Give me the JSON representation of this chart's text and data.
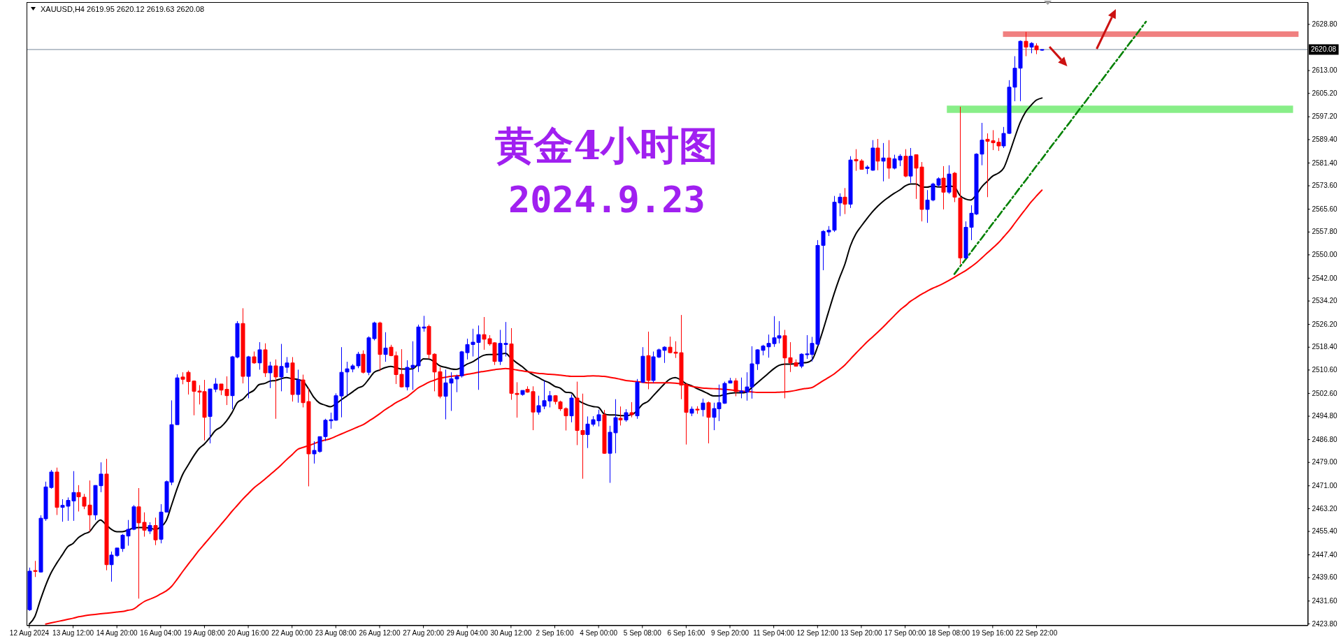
{
  "chart_data": {
    "type": "candlestick",
    "title": "黄金4小时图",
    "subtitle": "2024.9.23",
    "annotations": [
      "XAUUSD,H4 2619.95 2620.12 2619.63 2620.08"
    ],
    "categories": [
      "12 Aug 2024",
      null,
      null,
      null,
      null,
      null,
      null,
      null,
      "13 Aug 12:00",
      null,
      null,
      null,
      null,
      null,
      null,
      null,
      "14 Aug 20:00",
      null,
      null,
      null,
      null,
      null,
      null,
      null,
      "16 Aug 04:00",
      null,
      null,
      null,
      null,
      null,
      null,
      null,
      "19 Aug 08:00",
      null,
      null,
      null,
      null,
      null,
      null,
      null,
      "20 Aug 16:00",
      null,
      null,
      null,
      null,
      null,
      null,
      null,
      "22 Aug 00:00",
      null,
      null,
      null,
      null,
      null,
      null,
      null,
      "23 Aug 08:00",
      null,
      null,
      null,
      null,
      null,
      null,
      null,
      "26 Aug 12:00",
      null,
      null,
      null,
      null,
      null,
      null,
      null,
      "27 Aug 20:00",
      null,
      null,
      null,
      null,
      null,
      null,
      null,
      "29 Aug 04:00",
      null,
      null,
      null,
      null,
      null,
      null,
      null,
      "30 Aug 12:00",
      null,
      null,
      null,
      null,
      null,
      null,
      null,
      "2 Sep 16:00",
      null,
      null,
      null,
      null,
      null,
      null,
      null,
      "4 Sep 00:00",
      null,
      null,
      null,
      null,
      null,
      null,
      null,
      "5 Sep 08:00",
      null,
      null,
      null,
      null,
      null,
      null,
      null,
      "6 Sep 16:00",
      null,
      null,
      null,
      null,
      null,
      null,
      null,
      "9 Sep 20:00",
      null,
      null,
      null,
      null,
      null,
      null,
      null,
      "11 Sep 04:00",
      null,
      null,
      null,
      null,
      null,
      null,
      null,
      "12 Sep 12:00",
      null,
      null,
      null,
      null,
      null,
      null,
      null,
      "13 Sep 20:00",
      null,
      null,
      null,
      null,
      null,
      null,
      null,
      "17 Sep 00:00",
      null,
      null,
      null,
      null,
      null,
      null,
      null,
      "18 Sep 08:00",
      null,
      null,
      null,
      null,
      null,
      null,
      null,
      "19 Sep 16:00",
      null,
      null,
      null,
      null,
      null,
      null,
      null,
      "22 Sep 22:00",
      null,
      null,
      null,
      null,
      null,
      null,
      null,
      null,
      null,
      null,
      null,
      null,
      null,
      null,
      null,
      null,
      null,
      null,
      null,
      null,
      null,
      null,
      null,
      null,
      null,
      null,
      null,
      null,
      null,
      null,
      null,
      null,
      null,
      null,
      null,
      null,
      null,
      null,
      null,
      null,
      null,
      null,
      null,
      null,
      null,
      null,
      null,
      null,
      null
    ],
    "ohlc": [
      [
        2428.5,
        2442.9,
        2428.1,
        2441.7
      ],
      [
        2441.9,
        2445.2,
        2439.7,
        2441.6
      ],
      [
        2441.4,
        2460.8,
        2441.2,
        2459.8
      ],
      [
        2459.6,
        2472.3,
        2458.9,
        2470.5
      ],
      [
        2470.3,
        2476.3,
        2469.9,
        2475.6
      ],
      [
        2475.6,
        2477.1,
        2460.9,
        2463.5
      ],
      [
        2463.5,
        2466.3,
        2458.6,
        2464.2
      ],
      [
        2463.9,
        2466.9,
        2458.9,
        2465.9
      ],
      [
        2465.7,
        2475.9,
        2458.9,
        2468.6
      ],
      [
        2468.6,
        2471.1,
        2462.1,
        2467.1
      ],
      [
        2467.0,
        2468.1,
        2462.9,
        2463.9
      ],
      [
        2464.3,
        2472.7,
        2455.2,
        2460.9
      ],
      [
        2460.9,
        2471.1,
        2459.2,
        2471.0
      ],
      [
        2470.9,
        2478.9,
        2468.7,
        2474.9
      ],
      [
        2474.9,
        2480.1,
        2442.0,
        2443.9
      ],
      [
        2443.9,
        2448.4,
        2438.1,
        2447.2
      ],
      [
        2447.0,
        2449.6,
        2446.6,
        2449.6
      ],
      [
        2449.4,
        2454.4,
        2448.3,
        2454.0
      ],
      [
        2453.7,
        2459.2,
        2450.4,
        2456.0
      ],
      [
        2456.0,
        2464.3,
        2455.7,
        2463.7
      ],
      [
        2463.7,
        2470.1,
        2432.3,
        2458.2
      ],
      [
        2458.4,
        2461.8,
        2453.5,
        2455.7
      ],
      [
        2455.4,
        2458.4,
        2454.4,
        2457.3
      ],
      [
        2457.3,
        2460.0,
        2450.6,
        2452.4
      ],
      [
        2452.6,
        2464.6,
        2451.2,
        2461.9
      ],
      [
        2461.9,
        2472.7,
        2461.8,
        2472.3
      ],
      [
        2472.1,
        2500.1,
        2471.1,
        2491.8
      ],
      [
        2491.8,
        2509.0,
        2491.8,
        2507.8
      ],
      [
        2508.1,
        2509.7,
        2505.6,
        2507.3
      ],
      [
        2509.7,
        2510.3,
        2502.1,
        2506.5
      ],
      [
        2506.7,
        2506.9,
        2495.0,
        2503.2
      ],
      [
        2503.3,
        2505.3,
        2498.7,
        2502.9
      ],
      [
        2503.1,
        2507.1,
        2486.4,
        2494.3
      ],
      [
        2494.6,
        2504.0,
        2485.4,
        2504.0
      ],
      [
        2503.9,
        2507.7,
        2502.9,
        2505.7
      ],
      [
        2505.7,
        2505.7,
        2501.9,
        2503.6
      ],
      [
        2503.9,
        2508.3,
        2498.5,
        2501.7
      ],
      [
        2501.7,
        2515.3,
        2497.1,
        2515.0
      ],
      [
        2514.9,
        2527.2,
        2514.5,
        2526.4
      ],
      [
        2526.4,
        2531.6,
        2505.9,
        2508.3
      ],
      [
        2508.3,
        2515.3,
        2500.8,
        2515.0
      ],
      [
        2515.0,
        2516.8,
        2512.6,
        2512.9
      ],
      [
        2512.9,
        2520.0,
        2510.6,
        2517.4
      ],
      [
        2517.4,
        2519.6,
        2508.1,
        2509.5
      ],
      [
        2509.5,
        2513.3,
        2504.3,
        2511.9
      ],
      [
        2511.9,
        2514.1,
        2493.8,
        2508.1
      ],
      [
        2508.1,
        2519.4,
        2503.2,
        2511.7
      ],
      [
        2511.4,
        2514.9,
        2509.5,
        2512.9
      ],
      [
        2512.9,
        2514.9,
        2499.7,
        2502.1
      ],
      [
        2502.1,
        2510.6,
        2499.3,
        2507.1
      ],
      [
        2507.1,
        2508.9,
        2497.7,
        2499.3
      ],
      [
        2499.7,
        2504.3,
        2470.7,
        2481.8
      ],
      [
        2481.8,
        2486.1,
        2478.5,
        2483.0
      ],
      [
        2482.6,
        2487.7,
        2482.2,
        2487.7
      ],
      [
        2487.7,
        2493.8,
        2486.2,
        2493.3
      ],
      [
        2493.1,
        2495.9,
        2490.4,
        2493.5
      ],
      [
        2493.3,
        2502.5,
        2493.1,
        2501.7
      ],
      [
        2501.6,
        2518.3,
        2494.3,
        2509.7
      ],
      [
        2509.8,
        2513.3,
        2501.7,
        2510.9
      ],
      [
        2510.8,
        2512.5,
        2509.7,
        2511.9
      ],
      [
        2511.9,
        2516.7,
        2511.1,
        2515.9
      ],
      [
        2515.9,
        2517.2,
        2509.3,
        2509.7
      ],
      [
        2509.7,
        2522.0,
        2508.7,
        2521.5
      ],
      [
        2521.2,
        2527.0,
        2520.6,
        2526.6
      ],
      [
        2526.6,
        2527.0,
        2510.1,
        2515.8
      ],
      [
        2515.8,
        2523.4,
        2513.3,
        2518.0
      ],
      [
        2518.3,
        2519.1,
        2515.2,
        2515.4
      ],
      [
        2515.4,
        2516.8,
        2505.7,
        2508.9
      ],
      [
        2509.0,
        2517.6,
        2504.5,
        2504.7
      ],
      [
        2504.7,
        2513.8,
        2503.5,
        2511.4
      ],
      [
        2511.3,
        2520.3,
        2503.7,
        2512.1
      ],
      [
        2511.9,
        2526.0,
        2509.8,
        2525.2
      ],
      [
        2524.8,
        2529.0,
        2523.6,
        2525.2
      ],
      [
        2525.4,
        2526.0,
        2514.3,
        2515.8
      ],
      [
        2515.9,
        2516.2,
        2503.2,
        2509.8
      ],
      [
        2509.9,
        2511.4,
        2500.8,
        2501.5
      ],
      [
        2501.5,
        2510.6,
        2493.6,
        2506.1
      ],
      [
        2506.0,
        2509.7,
        2496.5,
        2507.5
      ],
      [
        2507.4,
        2508.9,
        2502.9,
        2508.2
      ],
      [
        2508.5,
        2517.0,
        2507.9,
        2516.7
      ],
      [
        2516.4,
        2521.2,
        2514.1,
        2519.2
      ],
      [
        2519.2,
        2524.6,
        2515.1,
        2520.0
      ],
      [
        2519.9,
        2525.7,
        2503.7,
        2522.6
      ],
      [
        2522.6,
        2528.6,
        2517.4,
        2521.0
      ],
      [
        2521.2,
        2522.4,
        2518.8,
        2519.4
      ],
      [
        2519.8,
        2520.0,
        2512.2,
        2513.4
      ],
      [
        2513.4,
        2524.2,
        2512.2,
        2519.6
      ],
      [
        2519.2,
        2526.9,
        2515.1,
        2519.6
      ],
      [
        2519.4,
        2524.8,
        2500.3,
        2502.5
      ],
      [
        2502.5,
        2506.3,
        2494.2,
        2502.1
      ],
      [
        2502.1,
        2503.5,
        2501.7,
        2503.5
      ],
      [
        2503.9,
        2504.9,
        2502.7,
        2502.9
      ],
      [
        2503.1,
        2504.9,
        2489.9,
        2496.1
      ],
      [
        2496.1,
        2501.7,
        2495.2,
        2498.3
      ],
      [
        2498.1,
        2506.9,
        2497.1,
        2500.0
      ],
      [
        2499.9,
        2503.3,
        2497.7,
        2501.7
      ],
      [
        2501.7,
        2501.9,
        2498.7,
        2499.7
      ],
      [
        2499.6,
        2500.0,
        2496.5,
        2497.2
      ],
      [
        2497.3,
        2497.7,
        2489.8,
        2494.8
      ],
      [
        2494.8,
        2502.1,
        2492.6,
        2500.9
      ],
      [
        2500.9,
        2506.5,
        2484.8,
        2489.8
      ],
      [
        2489.8,
        2502.4,
        2473.3,
        2488.4
      ],
      [
        2488.4,
        2494.6,
        2483.8,
        2492.0
      ],
      [
        2491.9,
        2494.7,
        2491.2,
        2493.5
      ],
      [
        2493.1,
        2496.9,
        2491.2,
        2495.2
      ],
      [
        2495.2,
        2496.8,
        2481.8,
        2482.0
      ],
      [
        2482.0,
        2491.4,
        2471.9,
        2489.2
      ],
      [
        2489.0,
        2500.5,
        2482.0,
        2494.2
      ],
      [
        2494.0,
        2498.0,
        2491.5,
        2493.4
      ],
      [
        2493.4,
        2497.1,
        2492.8,
        2495.9
      ],
      [
        2495.9,
        2499.5,
        2494.3,
        2495.2
      ],
      [
        2494.8,
        2507.4,
        2493.8,
        2506.3
      ],
      [
        2506.3,
        2518.3,
        2506.1,
        2515.2
      ],
      [
        2515.4,
        2523.6,
        2503.9,
        2506.9
      ],
      [
        2506.9,
        2516.8,
        2506.1,
        2515.0
      ],
      [
        2514.9,
        2517.8,
        2514.6,
        2517.4
      ],
      [
        2517.2,
        2518.6,
        2512.9,
        2518.3
      ],
      [
        2518.3,
        2521.9,
        2516.2,
        2516.4
      ],
      [
        2516.6,
        2520.3,
        2514.6,
        2516.2
      ],
      [
        2516.4,
        2529.3,
        2500.5,
        2505.3
      ],
      [
        2505.5,
        2506.1,
        2485.0,
        2496.0
      ],
      [
        2495.7,
        2498.0,
        2494.7,
        2497.1
      ],
      [
        2497.1,
        2498.1,
        2495.5,
        2496.8
      ],
      [
        2496.9,
        2500.7,
        2494.6,
        2499.2
      ],
      [
        2499.3,
        2499.7,
        2485.4,
        2494.3
      ],
      [
        2494.3,
        2499.3,
        2489.9,
        2497.3
      ],
      [
        2497.2,
        2505.5,
        2493.0,
        2499.3
      ],
      [
        2499.1,
        2506.5,
        2498.9,
        2505.9
      ],
      [
        2506.0,
        2507.8,
        2505.9,
        2506.8
      ],
      [
        2506.8,
        2507.7,
        2501.5,
        2503.1
      ],
      [
        2502.9,
        2507.9,
        2500.8,
        2503.3
      ],
      [
        2502.9,
        2509.7,
        2500.0,
        2504.7
      ],
      [
        2504.7,
        2518.6,
        2500.7,
        2512.6
      ],
      [
        2512.6,
        2517.6,
        2510.5,
        2517.4
      ],
      [
        2517.2,
        2519.1,
        2515.5,
        2518.7
      ],
      [
        2518.4,
        2522.6,
        2514.7,
        2519.6
      ],
      [
        2519.5,
        2528.9,
        2518.4,
        2521.5
      ],
      [
        2521.4,
        2527.2,
        2519.6,
        2522.2
      ],
      [
        2522.2,
        2524.2,
        2500.8,
        2514.6
      ],
      [
        2514.7,
        2520.0,
        2509.8,
        2512.9
      ],
      [
        2513.0,
        2514.1,
        2511.7,
        2511.8
      ],
      [
        2511.8,
        2516.2,
        2511.1,
        2515.9
      ],
      [
        2515.7,
        2522.4,
        2514.3,
        2516.0
      ],
      [
        2515.8,
        2521.8,
        2513.4,
        2519.6
      ],
      [
        2519.3,
        2554.9,
        2518.7,
        2553.1
      ],
      [
        2553.1,
        2558.3,
        2544.6,
        2557.9
      ],
      [
        2557.7,
        2559.7,
        2556.3,
        2558.3
      ],
      [
        2558.3,
        2570.0,
        2557.7,
        2567.9
      ],
      [
        2567.6,
        2570.9,
        2563.1,
        2569.6
      ],
      [
        2569.6,
        2572.7,
        2563.8,
        2567.2
      ],
      [
        2567.2,
        2583.6,
        2565.9,
        2582.3
      ],
      [
        2582.5,
        2586.0,
        2578.6,
        2582.0
      ],
      [
        2582.0,
        2582.6,
        2579.1,
        2579.1
      ],
      [
        2579.4,
        2580.5,
        2577.5,
        2579.9
      ],
      [
        2578.8,
        2589.1,
        2578.6,
        2586.4
      ],
      [
        2586.4,
        2589.5,
        2578.8,
        2581.9
      ],
      [
        2581.9,
        2588.1,
        2575.0,
        2583.0
      ],
      [
        2583.0,
        2589.1,
        2575.9,
        2579.5
      ],
      [
        2579.5,
        2584.1,
        2579.1,
        2582.7
      ],
      [
        2582.3,
        2584.3,
        2580.2,
        2583.6
      ],
      [
        2583.6,
        2586.0,
        2576.4,
        2576.8
      ],
      [
        2576.8,
        2586.4,
        2574.5,
        2583.6
      ],
      [
        2584.1,
        2584.1,
        2569.0,
        2579.5
      ],
      [
        2579.9,
        2581.6,
        2561.3,
        2565.4
      ],
      [
        2565.4,
        2572.0,
        2560.8,
        2568.6
      ],
      [
        2568.6,
        2574.5,
        2568.2,
        2574.1
      ],
      [
        2573.7,
        2576.4,
        2573.1,
        2575.9
      ],
      [
        2576.1,
        2580.2,
        2565.4,
        2571.3
      ],
      [
        2571.3,
        2580.5,
        2570.7,
        2577.5
      ],
      [
        2577.8,
        2578.2,
        2567.9,
        2569.6
      ],
      [
        2569.3,
        2600.5,
        2546.7,
        2548.8
      ],
      [
        2548.8,
        2561.3,
        2548.5,
        2559.3
      ],
      [
        2559.3,
        2566.8,
        2554.9,
        2564.1
      ],
      [
        2563.8,
        2584.6,
        2563.5,
        2584.3
      ],
      [
        2584.3,
        2595.0,
        2580.5,
        2589.1
      ],
      [
        2589.4,
        2591.4,
        2569.6,
        2588.7
      ],
      [
        2588.9,
        2592.5,
        2585.7,
        2588.2
      ],
      [
        2588.4,
        2589.8,
        2585.4,
        2587.1
      ],
      [
        2587.1,
        2593.6,
        2586.4,
        2591.4
      ],
      [
        2591.4,
        2609.6,
        2591.2,
        2607.2
      ],
      [
        2607.2,
        2617.8,
        2602.4,
        2613.7
      ],
      [
        2613.7,
        2623.2,
        2602.4,
        2622.9
      ],
      [
        2622.9,
        2626.1,
        2617.8,
        2620.9
      ],
      [
        2620.9,
        2622.6,
        2618.8,
        2622.2
      ],
      [
        2621.3,
        2622.2,
        2618.5,
        2620.0
      ],
      [
        2619.95,
        2620.12,
        2619.63,
        2620.08
      ],
      null,
      null,
      null,
      null,
      null,
      null,
      null,
      null,
      null,
      null,
      null,
      null,
      null,
      null,
      null,
      null,
      null,
      null,
      null,
      null,
      null,
      null,
      null,
      null,
      null,
      null,
      null,
      null,
      null,
      null,
      null,
      null,
      null,
      null,
      null,
      null,
      null,
      null,
      null,
      null,
      null,
      null,
      null,
      null,
      null,
      null,
      null,
      null
    ],
    "colors": [
      "#0000ff",
      "#ff0000",
      "#0000ff",
      "#0000ff",
      "#0000ff",
      "#ff0000",
      "#0000ff",
      "#0000ff",
      "#0000ff",
      "#ff0000",
      "#ff0000",
      "#ff0000",
      "#0000ff",
      "#0000ff",
      "#ff0000",
      "#0000ff",
      "#0000ff",
      "#0000ff",
      "#0000ff",
      "#0000ff",
      "#ff0000",
      "#ff0000",
      "#0000ff",
      "#ff0000",
      "#0000ff",
      "#0000ff",
      "#0000ff",
      "#0000ff",
      "#ff0000",
      "#ff0000",
      "#ff0000",
      "#ff0000",
      "#ff0000",
      "#0000ff",
      "#0000ff",
      "#ff0000",
      "#ff0000",
      "#0000ff",
      "#0000ff",
      "#ff0000",
      "#0000ff",
      "#ff0000",
      "#0000ff",
      "#ff0000",
      "#0000ff",
      "#ff0000",
      "#0000ff",
      "#0000ff",
      "#ff0000",
      "#0000ff",
      "#ff0000",
      "#ff0000",
      "#0000ff",
      "#0000ff",
      "#0000ff",
      "#0000ff",
      "#0000ff",
      "#0000ff",
      "#0000ff",
      "#0000ff",
      "#0000ff",
      "#ff0000",
      "#0000ff",
      "#0000ff",
      "#ff0000",
      "#0000ff",
      "#ff0000",
      "#ff0000",
      "#ff0000",
      "#0000ff",
      "#0000ff",
      "#0000ff",
      "#0000ff",
      "#ff0000",
      "#ff0000",
      "#ff0000",
      "#0000ff",
      "#0000ff",
      "#0000ff",
      "#0000ff",
      "#0000ff",
      "#0000ff",
      "#0000ff",
      "#ff0000",
      "#ff0000",
      "#ff0000",
      "#0000ff",
      "#0000ff",
      "#ff0000",
      "#ff0000",
      "#0000ff",
      "#ff0000",
      "#ff0000",
      "#0000ff",
      "#0000ff",
      "#0000ff",
      "#ff0000",
      "#ff0000",
      "#ff0000",
      "#0000ff",
      "#ff0000",
      "#ff0000",
      "#0000ff",
      "#0000ff",
      "#0000ff",
      "#ff0000",
      "#0000ff",
      "#0000ff",
      "#ff0000",
      "#0000ff",
      "#ff0000",
      "#0000ff",
      "#0000ff",
      "#ff0000",
      "#0000ff",
      "#0000ff",
      "#0000ff",
      "#ff0000",
      "#ff0000",
      "#ff0000",
      "#ff0000",
      "#0000ff",
      "#ff0000",
      "#0000ff",
      "#ff0000",
      "#0000ff",
      "#0000ff",
      "#0000ff",
      "#0000ff",
      "#ff0000",
      "#0000ff",
      "#0000ff",
      "#0000ff",
      "#0000ff",
      "#0000ff",
      "#0000ff",
      "#0000ff",
      "#0000ff",
      "#ff0000",
      "#ff0000",
      "#ff0000",
      "#0000ff",
      "#0000ff",
      "#0000ff",
      "#0000ff",
      "#0000ff",
      "#0000ff",
      "#0000ff",
      "#0000ff",
      "#ff0000",
      "#0000ff",
      "#ff0000",
      "#ff0000",
      "#0000ff",
      "#0000ff",
      "#ff0000",
      "#0000ff",
      "#ff0000",
      "#0000ff",
      "#0000ff",
      "#ff0000",
      "#0000ff",
      "#ff0000",
      "#ff0000",
      "#0000ff",
      "#0000ff",
      "#0000ff",
      "#ff0000",
      "#0000ff",
      "#ff0000",
      "#ff0000",
      "#0000ff",
      "#0000ff",
      "#0000ff",
      "#0000ff",
      "#ff0000",
      "#ff0000",
      "#ff0000",
      "#0000ff",
      "#0000ff",
      "#0000ff",
      "#0000ff",
      "#ff0000",
      "#0000ff",
      "#ff0000",
      "#0000ff",
      null,
      null,
      null,
      null,
      null,
      null,
      null,
      null,
      null,
      null,
      null,
      null,
      null,
      null,
      null,
      null,
      null,
      null,
      null,
      null,
      null,
      null,
      null,
      null,
      null,
      null,
      null,
      null,
      null,
      null,
      null,
      null,
      null,
      null,
      null,
      null,
      null,
      null,
      null,
      null,
      null,
      null,
      null,
      null,
      null,
      null,
      null,
      null
    ],
    "series": [
      {
        "type": "line",
        "color": "#000000",
        "values": [
          2423.6,
          2426.1,
          2431.7,
          2436.9,
          2441.2,
          2444.4,
          2447.2,
          2450.0,
          2451.2,
          2453.2,
          2454.4,
          2455.2,
          2457.6,
          2459.2,
          2457.6,
          2456.0,
          2455.2,
          2455.2,
          2455.7,
          2456.4,
          2456.6,
          2456.6,
          2456.4,
          2456.0,
          2456.8,
          2458.9,
          2464.3,
          2469.9,
          2474.7,
          2477.9,
          2481.0,
          2483.6,
          2485.2,
          2487.4,
          2489.8,
          2491.0,
          2493.0,
          2495.8,
          2499.3,
          2500.5,
          2502.4,
          2503.5,
          2505.5,
          2505.9,
          2506.7,
          2506.9,
          2507.5,
          2507.9,
          2507.5,
          2507.3,
          2506.6,
          2504.1,
          2501.1,
          2499.2,
          2498.5,
          2497.9,
          2498.9,
          2500.3,
          2501.6,
          2502.9,
          2504.3,
          2505.1,
          2507.3,
          2509.7,
          2510.5,
          2511.3,
          2511.7,
          2511.3,
          2510.8,
          2510.8,
          2510.9,
          2512.5,
          2514.3,
          2514.2,
          2513.3,
          2511.9,
          2511.4,
          2510.9,
          2510.7,
          2511.4,
          2512.5,
          2513.3,
          2514.5,
          2515.5,
          2515.8,
          2515.8,
          2515.9,
          2516.2,
          2514.5,
          2513.0,
          2511.7,
          2510.1,
          2508.9,
          2507.9,
          2506.9,
          2506.1,
          2504.9,
          2504.3,
          2502.9,
          2502.7,
          2500.5,
          2499.3,
          2498.5,
          2498.0,
          2497.7,
          2495.5,
          2495.1,
          2495.1,
          2494.9,
          2494.9,
          2495.2,
          2496.5,
          2498.7,
          2499.7,
          2501.7,
          2503.7,
          2505.7,
          2507.3,
          2507.9,
          2507.1,
          2505.8,
          2505.1,
          2504.1,
          2503.3,
          2502.4,
          2501.6,
          2501.6,
          2502.1,
          2502.5,
          2502.7,
          2502.7,
          2502.9,
          2504.5,
          2506.1,
          2507.7,
          2509.3,
          2510.9,
          2512.1,
          2512.5,
          2512.5,
          2512.6,
          2512.9,
          2513.0,
          2514.0,
          2518.4,
          2524.1,
          2530.3,
          2536.4,
          2541.9,
          2546.7,
          2552.9,
          2557.0,
          2559.7,
          2562.2,
          2564.5,
          2566.5,
          2568.2,
          2569.6,
          2570.9,
          2572.0,
          2573.4,
          2574.1,
          2574.1,
          2573.1,
          2573.0,
          2573.4,
          2573.1,
          2573.1,
          2573.4,
          2573.1,
          2570.2,
          2569.0,
          2568.6,
          2570.4,
          2573.1,
          2575.0,
          2576.8,
          2577.8,
          2579.5,
          2584.3,
          2589.8,
          2595.0,
          2598.7,
          2601.0,
          2602.8,
          2603.5,
          null,
          null,
          null,
          null,
          null,
          null,
          null,
          null,
          null,
          null,
          null,
          null,
          null,
          null,
          null,
          null,
          null,
          null,
          null,
          null,
          null,
          null,
          null,
          null,
          null,
          null,
          null,
          null,
          null,
          null,
          null,
          null,
          null,
          null,
          null,
          null,
          null,
          null,
          null,
          null,
          null,
          null,
          null,
          null,
          null,
          null,
          null,
          null
        ]
      },
      {
        "type": "line",
        "color": "#ff0000",
        "values": [
          null,
          null,
          null,
          2423.6,
          2424.0,
          2424.4,
          2424.8,
          2425.2,
          2425.6,
          2426.1,
          2426.4,
          2426.7,
          2426.9,
          2427.1,
          2427.3,
          2427.5,
          2427.7,
          2427.9,
          2428.3,
          2428.7,
          2430.0,
          2431.3,
          2432.1,
          2432.9,
          2433.9,
          2434.9,
          2436.5,
          2438.9,
          2441.5,
          2444.0,
          2446.4,
          2448.8,
          2451.0,
          2453.2,
          2455.4,
          2457.6,
          2459.8,
          2462.1,
          2464.2,
          2466.3,
          2468.2,
          2470.1,
          2471.6,
          2473.1,
          2474.7,
          2476.3,
          2478.0,
          2479.8,
          2481.5,
          2483.3,
          2484.0,
          2484.6,
          2485.3,
          2486.0,
          2486.5,
          2487.0,
          2487.8,
          2488.6,
          2489.4,
          2490.2,
          2491.0,
          2491.8,
          2493.0,
          2494.2,
          2495.5,
          2496.9,
          2498.1,
          2499.3,
          2500.3,
          2501.3,
          2502.8,
          2504.3,
          2505.3,
          2506.3,
          2507.0,
          2507.7,
          2508.0,
          2508.3,
          2508.5,
          2508.6,
          2509.0,
          2509.3,
          2509.7,
          2510.0,
          2510.3,
          2510.6,
          2510.8,
          2511.0,
          2510.8,
          2510.5,
          2510.2,
          2509.9,
          2509.6,
          2509.3,
          2509.2,
          2509.0,
          2508.9,
          2508.7,
          2508.5,
          2508.3,
          2508.3,
          2508.3,
          2508.4,
          2508.5,
          2508.4,
          2508.3,
          2508.0,
          2507.7,
          2507.3,
          2506.9,
          2506.7,
          2506.5,
          2506.3,
          2506.1,
          2506.1,
          2506.1,
          2506.1,
          2506.1,
          2506.0,
          2505.8,
          2505.4,
          2504.9,
          2504.6,
          2504.3,
          2504.2,
          2504.1,
          2504.0,
          2503.9,
          2503.7,
          2503.5,
          2503.3,
          2503.1,
          2503.0,
          2502.8,
          2502.8,
          2502.8,
          2502.8,
          2502.9,
          2503.0,
          2503.2,
          2503.5,
          2503.9,
          2504.2,
          2504.5,
          2505.6,
          2506.8,
          2507.9,
          2509.1,
          2510.6,
          2512.2,
          2514.2,
          2516.2,
          2518.1,
          2520.0,
          2521.7,
          2523.4,
          2525.2,
          2527.1,
          2529.0,
          2530.9,
          2532.4,
          2534.0,
          2535.2,
          2536.4,
          2537.4,
          2538.4,
          2539.2,
          2540.1,
          2541.1,
          2542.2,
          2543.3,
          2544.4,
          2545.7,
          2547.1,
          2548.8,
          2550.5,
          2552.2,
          2553.9,
          2556.0,
          2558.1,
          2560.6,
          2563.1,
          2565.5,
          2567.9,
          2570.0,
          2572.0,
          null,
          null,
          null,
          null,
          null,
          null,
          null,
          null,
          null,
          null,
          null,
          null,
          null,
          null,
          null,
          null,
          null,
          null,
          null,
          null,
          null,
          null,
          null,
          null,
          null,
          null,
          null,
          null,
          null,
          null,
          null,
          null,
          null,
          null,
          null,
          null,
          null,
          null,
          null,
          null,
          null,
          null,
          null,
          null,
          null,
          null,
          null,
          null
        ]
      },
      {
        "type": "line",
        "color": "#008000",
        "line_style": "dashed",
        "values": [
          null,
          null,
          null,
          null,
          null,
          null,
          null,
          null,
          null,
          null,
          null,
          null,
          null,
          null,
          null,
          null,
          null,
          null,
          null,
          null,
          null,
          null,
          null,
          null,
          null,
          null,
          null,
          null,
          null,
          null,
          null,
          null,
          null,
          null,
          null,
          null,
          null,
          null,
          null,
          null,
          null,
          null,
          null,
          null,
          null,
          null,
          null,
          null,
          null,
          null,
          null,
          null,
          null,
          null,
          null,
          null,
          null,
          null,
          null,
          null,
          null,
          null,
          null,
          null,
          null,
          null,
          null,
          null,
          null,
          null,
          null,
          null,
          null,
          null,
          null,
          null,
          null,
          null,
          null,
          null,
          null,
          null,
          null,
          null,
          null,
          null,
          null,
          null,
          null,
          null,
          null,
          null,
          null,
          null,
          null,
          null,
          null,
          null,
          null,
          null,
          null,
          null,
          null,
          null,
          null,
          null,
          null,
          null,
          null,
          null,
          null,
          null,
          null,
          null,
          null,
          null,
          null,
          null,
          null,
          null,
          null,
          null,
          null,
          null,
          null,
          null,
          null,
          null,
          null,
          null,
          null,
          null,
          null,
          null,
          null,
          null,
          null,
          null,
          null,
          null,
          null,
          null,
          null,
          null,
          null,
          null,
          null,
          null,
          null,
          null,
          null,
          null,
          null,
          null,
          null,
          null,
          null,
          null,
          null,
          null,
          null,
          null,
          null,
          null,
          null,
          null,
          null,
          null,
          null,
          2543.3,
          2545.8,
          2548.2,
          2550.7,
          2553.2,
          2555.6,
          2558.1,
          2560.6,
          2563.0,
          2565.5,
          2567.9,
          2570.4,
          2572.9,
          2575.3,
          2577.8,
          2580.3,
          2582.7,
          2585.2,
          2587.7,
          2590.1,
          2592.6,
          2595.0,
          2597.5,
          2600.0,
          2602.4,
          2604.9,
          2607.4,
          2609.8,
          2612.3,
          2614.8,
          2617.2,
          2619.7,
          2622.2,
          2624.6,
          2627.1,
          2629.6,
          null,
          null,
          null,
          null,
          null,
          null,
          null,
          null,
          null,
          null,
          null,
          null,
          null,
          null,
          null,
          null,
          null,
          null,
          null,
          null,
          null,
          null,
          null,
          null,
          null,
          null,
          null,
          null,
          null
        ]
      }
    ],
    "ylim": [
      2423.3,
      2636.3
    ],
    "yticks": [
      {
        "value": 2628.8,
        "label": "2628.80"
      },
      {
        "value": 2613,
        "label": "2613.00"
      },
      {
        "value": 2605.2,
        "label": "2605.20"
      },
      {
        "value": 2597.2,
        "label": "2597.20"
      },
      {
        "value": 2589.4,
        "label": "2589.40"
      },
      {
        "value": 2581.4,
        "label": "2581.40"
      },
      {
        "value": 2573.6,
        "label": "2573.60"
      },
      {
        "value": 2565.6,
        "label": "2565.60"
      },
      {
        "value": 2557.8,
        "label": "2557.80"
      },
      {
        "value": 2550,
        "label": "2550.00"
      },
      {
        "value": 2542,
        "label": "2542.00"
      },
      {
        "value": 2534.2,
        "label": "2534.20"
      },
      {
        "value": 2526.2,
        "label": "2526.20"
      },
      {
        "value": 2518.4,
        "label": "2518.40"
      },
      {
        "value": 2510.6,
        "label": "2510.60"
      },
      {
        "value": 2502.6,
        "label": "2502.60"
      },
      {
        "value": 2494.8,
        "label": "2494.80"
      },
      {
        "value": 2486.8,
        "label": "2486.80"
      },
      {
        "value": 2479,
        "label": "2479.00"
      },
      {
        "value": 2471,
        "label": "2471.00"
      },
      {
        "value": 2463.2,
        "label": "2463.20"
      },
      {
        "value": 2455.4,
        "label": "2455.40"
      },
      {
        "value": 2447.4,
        "label": "2447.40"
      },
      {
        "value": 2439.6,
        "label": "2439.60"
      },
      {
        "value": 2431.6,
        "label": "2431.60"
      },
      {
        "value": 2423.8,
        "label": "2423.80"
      }
    ],
    "ref_lines": [
      {
        "axis": "y",
        "value": 2620.08,
        "label": "2620.08",
        "color": "#778899"
      }
    ],
    "bands": [
      {
        "axis": "y",
        "from": 2624.4,
        "to": 2626.3,
        "color": "#f08080"
      },
      {
        "axis": "y",
        "from": 2598.4,
        "to": 2600.9,
        "color": "#88ee88"
      }
    ]
  }
}
